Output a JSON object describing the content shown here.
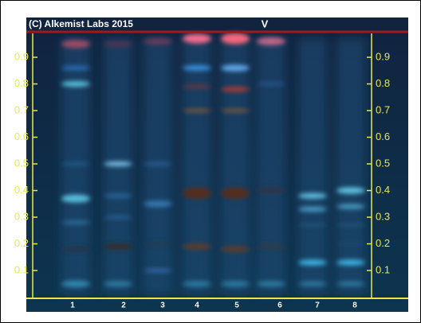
{
  "header": {
    "copyright": "(C) Alkemist Labs 2015",
    "marker": "V"
  },
  "left_scale": [
    "0.9",
    "0.8",
    "0.7",
    "0.6",
    "0.5",
    "0.4",
    "0.3",
    "0.2",
    "0.1"
  ],
  "right_scale": [
    "0.9",
    "0.8",
    "0.7",
    "0.6",
    "0.5",
    "0.4",
    "0.3",
    "0.2",
    "0.1"
  ],
  "lanes": [
    "1",
    "2",
    "3",
    "4",
    "5",
    "6",
    "7",
    "8"
  ]
}
